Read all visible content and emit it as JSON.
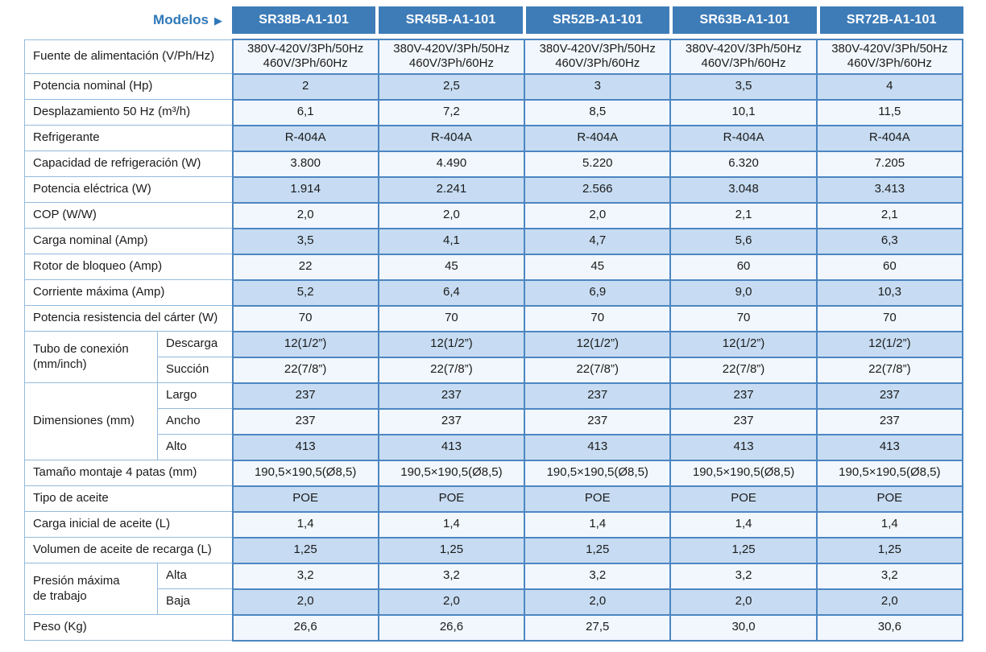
{
  "header": {
    "models_label": "Modelos",
    "arrow_icon": "▶",
    "models": [
      "SR38B-A1-101",
      "SR45B-A1-101",
      "SR52B-A1-101",
      "SR63B-A1-101",
      "SR72B-A1-101"
    ]
  },
  "colors": {
    "header_bg": "#3e7cb8",
    "header_text": "#ffffff",
    "models_label_text": "#2e78b8",
    "row_light": "#f2f7fd",
    "row_blue": "#c7dcf2",
    "data_border": "#4c86c2",
    "label_border": "#94badc",
    "text": "#1b1b1b"
  },
  "table": {
    "rows": [
      {
        "label": "Fuente de alimentación (V/Ph/Hz)",
        "shade": "light",
        "values": [
          "380V-420V/3Ph/50Hz\n460V/3Ph/60Hz",
          "380V-420V/3Ph/50Hz\n460V/3Ph/60Hz",
          "380V-420V/3Ph/50Hz\n460V/3Ph/60Hz",
          "380V-420V/3Ph/50Hz\n460V/3Ph/60Hz",
          "380V-420V/3Ph/50Hz\n460V/3Ph/60Hz"
        ]
      },
      {
        "label": "Potencia nominal (Hp)",
        "shade": "blue",
        "values": [
          "2",
          "2,5",
          "3",
          "3,5",
          "4"
        ]
      },
      {
        "label": "Desplazamiento 50 Hz (m³/h)",
        "shade": "light",
        "values": [
          "6,1",
          "7,2",
          "8,5",
          "10,1",
          "11,5"
        ]
      },
      {
        "label": "Refrigerante",
        "shade": "blue",
        "values": [
          "R-404A",
          "R-404A",
          "R-404A",
          "R-404A",
          "R-404A"
        ]
      },
      {
        "label": "Capacidad de refrigeración (W)",
        "shade": "light",
        "values": [
          "3.800",
          "4.490",
          "5.220",
          "6.320",
          "7.205"
        ]
      },
      {
        "label": "Potencia eléctrica (W)",
        "shade": "blue",
        "values": [
          "1.914",
          "2.241",
          "2.566",
          "3.048",
          "3.413"
        ]
      },
      {
        "label": "COP (W/W)",
        "shade": "light",
        "values": [
          "2,0",
          "2,0",
          "2,0",
          "2,1",
          "2,1"
        ]
      },
      {
        "label": "Carga nominal (Amp)",
        "shade": "blue",
        "values": [
          "3,5",
          "4,1",
          "4,7",
          "5,6",
          "6,3"
        ]
      },
      {
        "label": "Rotor de bloqueo (Amp)",
        "shade": "light",
        "values": [
          "22",
          "45",
          "45",
          "60",
          "60"
        ]
      },
      {
        "label": "Corriente máxima (Amp)",
        "shade": "blue",
        "values": [
          "5,2",
          "6,4",
          "6,9",
          "9,0",
          "10,3"
        ]
      },
      {
        "label": "Potencia resistencia del cárter (W)",
        "shade": "light",
        "values": [
          "70",
          "70",
          "70",
          "70",
          "70"
        ]
      },
      {
        "group": "Tubo de conexión\n(mm/inch)",
        "group_span": 2,
        "sublabel": "Descarga",
        "shade": "blue",
        "values": [
          "12(1/2”)",
          "12(1/2”)",
          "12(1/2”)",
          "12(1/2”)",
          "12(1/2”)"
        ]
      },
      {
        "sublabel": "Succión",
        "shade": "light",
        "values": [
          "22(7/8”)",
          "22(7/8”)",
          "22(7/8”)",
          "22(7/8”)",
          "22(7/8”)"
        ]
      },
      {
        "group": "Dimensiones (mm)",
        "group_span": 3,
        "sublabel": "Largo",
        "shade": "blue",
        "values": [
          "237",
          "237",
          "237",
          "237",
          "237"
        ]
      },
      {
        "sublabel": "Ancho",
        "shade": "light",
        "values": [
          "237",
          "237",
          "237",
          "237",
          "237"
        ]
      },
      {
        "sublabel": "Alto",
        "shade": "blue",
        "values": [
          "413",
          "413",
          "413",
          "413",
          "413"
        ]
      },
      {
        "label": "Tamaño montaje 4 patas (mm)",
        "shade": "light",
        "values": [
          "190,5×190,5(Ø8,5)",
          "190,5×190,5(Ø8,5)",
          "190,5×190,5(Ø8,5)",
          "190,5×190,5(Ø8,5)",
          "190,5×190,5(Ø8,5)"
        ]
      },
      {
        "label": "Tipo de aceite",
        "shade": "blue",
        "values": [
          "POE",
          "POE",
          "POE",
          "POE",
          "POE"
        ]
      },
      {
        "label": "Carga inicial de aceite (L)",
        "shade": "light",
        "values": [
          "1,4",
          "1,4",
          "1,4",
          "1,4",
          "1,4"
        ]
      },
      {
        "label": "Volumen de aceite de recarga (L)",
        "shade": "blue",
        "values": [
          "1,25",
          "1,25",
          "1,25",
          "1,25",
          "1,25"
        ]
      },
      {
        "group": "Presión máxima\nde trabajo",
        "group_span": 2,
        "sublabel": "Alta",
        "shade": "light",
        "values": [
          "3,2",
          "3,2",
          "3,2",
          "3,2",
          "3,2"
        ]
      },
      {
        "sublabel": "Baja",
        "shade": "blue",
        "values": [
          "2,0",
          "2,0",
          "2,0",
          "2,0",
          "2,0"
        ]
      },
      {
        "label": "Peso (Kg)",
        "shade": "light",
        "values": [
          "26,6",
          "26,6",
          "27,5",
          "30,0",
          "30,6"
        ]
      }
    ]
  }
}
